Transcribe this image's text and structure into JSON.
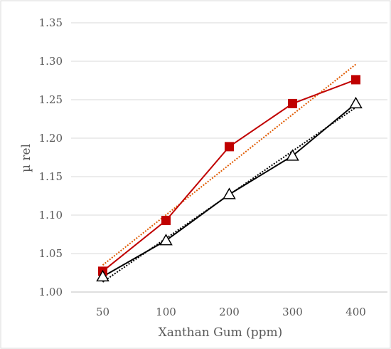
{
  "chart_data": {
    "type": "line",
    "xlabel": "Xanthan Gum (ppm)",
    "ylabel": "µ rel",
    "categories": [
      "50",
      "100",
      "200",
      "300",
      "400"
    ],
    "ylim": [
      1.0,
      1.35
    ],
    "y_ticks": [
      "1.00",
      "1.05",
      "1.10",
      "1.15",
      "1.20",
      "1.25",
      "1.30",
      "1.35"
    ],
    "grid": "horizontal",
    "legend": "none",
    "series": [
      {
        "marker": "square",
        "color": "#c00000",
        "values": [
          1.027,
          1.093,
          1.189,
          1.245,
          1.276
        ],
        "trendline": {
          "type": "linear",
          "style": "dotted",
          "color": "#e05a00",
          "start": 1.035,
          "end": 1.296
        }
      },
      {
        "marker": "triangle-open",
        "color": "#000000",
        "values": [
          1.02,
          1.067,
          1.127,
          1.177,
          1.245
        ],
        "trendline": {
          "type": "linear",
          "style": "dotted",
          "color": "#000000",
          "start": 1.013,
          "end": 1.24
        }
      }
    ]
  }
}
